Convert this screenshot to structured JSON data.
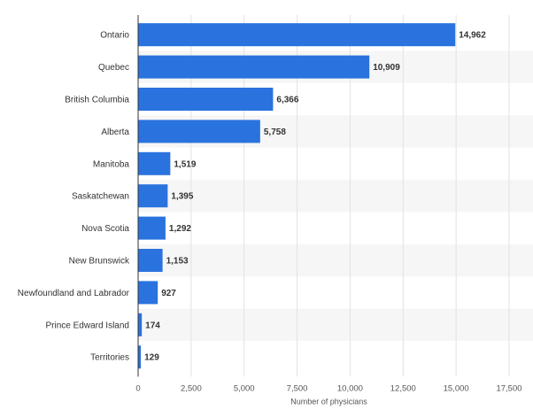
{
  "chart_data": {
    "type": "bar",
    "orientation": "horizontal",
    "categories": [
      "Ontario",
      "Quebec",
      "British Columbia",
      "Alberta",
      "Manitoba",
      "Saskatchewan",
      "Nova Scotia",
      "New Brunswick",
      "Newfoundland and Labrador",
      "Prince Edward Island",
      "Territories"
    ],
    "values": [
      14962,
      10909,
      6366,
      5758,
      1519,
      1395,
      1292,
      1153,
      927,
      174,
      129
    ],
    "data_labels": [
      "14,962",
      "10,909",
      "6,366",
      "5,758",
      "1,519",
      "1,395",
      "1,292",
      "1,153",
      "927",
      "174",
      "129"
    ],
    "xlabel": "Number of physicians",
    "ylabel": "",
    "xlim": [
      0,
      17500
    ],
    "xticks": [
      0,
      2500,
      5000,
      7500,
      10000,
      12500,
      15000,
      17500
    ],
    "xtick_labels": [
      "0",
      "2,500",
      "5,000",
      "7,500",
      "10,000",
      "12,500",
      "15,000",
      "17,500"
    ],
    "grid": true,
    "colors": {
      "bar": "#2a73de",
      "band": "#f6f6f6",
      "grid": "#e2e2e2",
      "axis": "#333333"
    }
  }
}
